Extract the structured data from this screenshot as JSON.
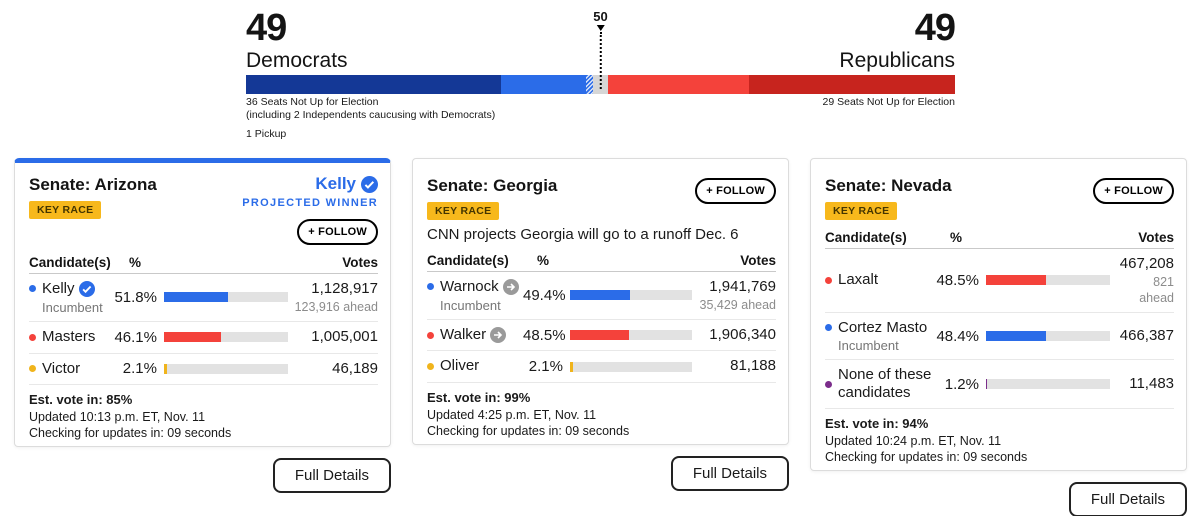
{
  "balance_of_power": {
    "majority_marker": "50",
    "dem": {
      "count": "49",
      "party": "Democrats",
      "not_up_note": "36 Seats Not Up for Election",
      "independents_note": "(including 2 Independents caucusing with Democrats)",
      "pickup_note": "1 Pickup",
      "seats_not_up": 36,
      "seats_won": 12,
      "seats_pickup": 1
    },
    "rep": {
      "count": "49",
      "party": "Republicans",
      "not_up_note": "29 Seats Not Up for Election",
      "seats_not_up": 29,
      "seats_won": 20
    },
    "undecided_seats": 2,
    "colors": {
      "dem_not_up": "#143896",
      "dem_won": "#2b6ce8",
      "undecided": "#d6d6d6",
      "rep_won": "#f4423b",
      "rep_not_up": "#c7241e"
    }
  },
  "cards": [
    {
      "title": "Senate: Arizona",
      "key_race": "KEY RACE",
      "follow": "+ FOLLOW",
      "projected_name": "Kelly",
      "projected_label": "PROJECTED WINNER",
      "columns": {
        "candidates": "Candidate(s)",
        "percent": "%",
        "votes": "Votes"
      },
      "candidates": [
        {
          "name": "Kelly",
          "sub": "Incumbent",
          "color": "#2b6ce8",
          "pct_label": "51.8%",
          "pct": 51.8,
          "votes": "1,128,917",
          "ahead": "123,916 ahead"
        },
        {
          "name": "Masters",
          "color": "#f4423b",
          "pct_label": "46.1%",
          "pct": 46.1,
          "votes": "1,005,001"
        },
        {
          "name": "Victor",
          "color": "#f0b41c",
          "pct_label": "2.1%",
          "pct": 2.1,
          "votes": "46,189"
        }
      ],
      "est_vote": "Est. vote in: 85%",
      "updated": "Updated 10:13 p.m. ET, Nov. 11",
      "checking": "Checking for updates in: 09 seconds",
      "full_details": "Full Details"
    },
    {
      "title": "Senate: Georgia",
      "key_race": "KEY RACE",
      "follow": "+ FOLLOW",
      "note": "CNN projects Georgia will go to a runoff Dec. 6",
      "columns": {
        "candidates": "Candidate(s)",
        "percent": "%",
        "votes": "Votes"
      },
      "candidates": [
        {
          "name": "Warnock",
          "sub": "Incumbent",
          "color": "#2b6ce8",
          "pct_label": "49.4%",
          "pct": 49.4,
          "votes": "1,941,769",
          "ahead": "35,429 ahead"
        },
        {
          "name": "Walker",
          "color": "#f4423b",
          "pct_label": "48.5%",
          "pct": 48.5,
          "votes": "1,906,340"
        },
        {
          "name": "Oliver",
          "color": "#f0b41c",
          "pct_label": "2.1%",
          "pct": 2.1,
          "votes": "81,188"
        }
      ],
      "est_vote": "Est. vote in: 99%",
      "updated": "Updated 4:25 p.m. ET, Nov. 11",
      "checking": "Checking for updates in: 09 seconds",
      "full_details": "Full Details"
    },
    {
      "title": "Senate: Nevada",
      "key_race": "KEY RACE",
      "follow": "+ FOLLOW",
      "columns": {
        "candidates": "Candidate(s)",
        "percent": "%",
        "votes": "Votes"
      },
      "candidates": [
        {
          "name": "Laxalt",
          "color": "#f4423b",
          "pct_label": "48.5%",
          "pct": 48.5,
          "votes": "467,208",
          "ahead": "821 ahead"
        },
        {
          "name": "Cortez Masto",
          "sub": "Incumbent",
          "color": "#2b6ce8",
          "pct_label": "48.4%",
          "pct": 48.4,
          "votes": "466,387"
        },
        {
          "name": "None of these candidates",
          "color": "#7b2d8b",
          "pct_label": "1.2%",
          "pct": 1.2,
          "votes": "11,483"
        }
      ],
      "est_vote": "Est. vote in: 94%",
      "updated": "Updated 10:24 p.m. ET, Nov. 11",
      "checking": "Checking for updates in: 09 seconds",
      "full_details": "Full Details"
    }
  ]
}
